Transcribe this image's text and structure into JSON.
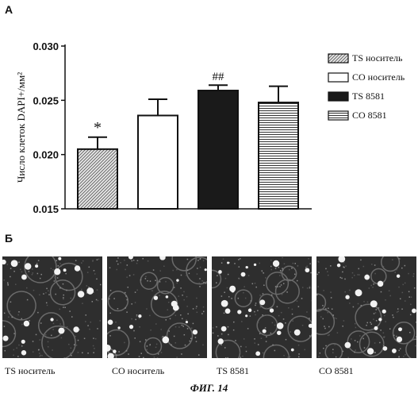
{
  "panel_a_label": "А",
  "panel_b_label": "Б",
  "figure_caption": "ФИГ. 14",
  "chart_data": {
    "type": "bar",
    "ylabel": "Число клеток DAPI+/мм²",
    "ylim": [
      0.015,
      0.03
    ],
    "yticks": [
      0.015,
      0.02,
      0.025,
      0.03
    ],
    "ytick_labels": [
      "0.015",
      "0.020",
      "0.025",
      "0.030"
    ],
    "categories": [
      "TS носитель",
      "CO носитель",
      "TS 8581",
      "CO 8581"
    ],
    "values": [
      0.0205,
      0.0236,
      0.0259,
      0.0248
    ],
    "errors": [
      0.0011,
      0.0015,
      0.0005,
      0.0015
    ],
    "annotations": [
      "*",
      "",
      "##",
      ""
    ],
    "fills": [
      "hatched",
      "white",
      "black",
      "horizontal-lines"
    ],
    "legend": [
      "TS носитель",
      "CO носитель",
      "TS 8581",
      "CO 8581"
    ],
    "legend_position": "right",
    "grid": false
  },
  "micrographs": [
    {
      "label": "TS носитель"
    },
    {
      "label": "CO носитель"
    },
    {
      "label": "TS 8581"
    },
    {
      "label": "CO 8581"
    }
  ]
}
